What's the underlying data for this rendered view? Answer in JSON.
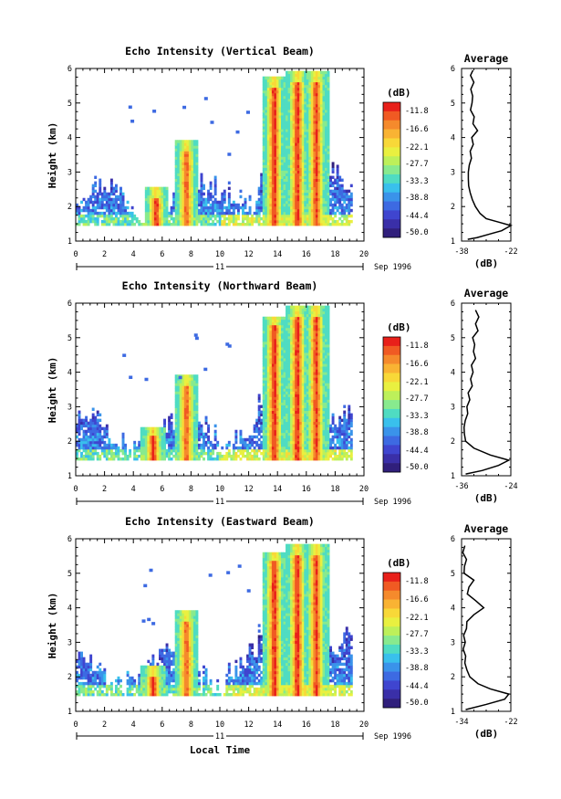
{
  "colorbar": {
    "unit": "(dB)",
    "labels": [
      "-11.8",
      "-16.6",
      "-22.1",
      "-27.7",
      "-33.3",
      "-38.8",
      "-44.4",
      "-50.0"
    ],
    "colors": [
      "#e8201a",
      "#f05a23",
      "#f58a2c",
      "#f9b333",
      "#f8d838",
      "#e9f040",
      "#bdf05a",
      "#88ea8e",
      "#4fdcc2",
      "#39c0ec",
      "#3a93ea",
      "#3d6ae2",
      "#3f45cf",
      "#3a2fa8",
      "#301f7c"
    ]
  },
  "chart_data": [
    {
      "type": "heatmap",
      "title": "Echo Intensity (Vertical Beam)",
      "ylabel": "Height (km)",
      "xlim": [
        0,
        20
      ],
      "ylim": [
        1,
        6
      ],
      "x_ticks": [
        "0",
        "2",
        "4",
        "6",
        "8",
        "10",
        "12",
        "14",
        "16",
        "18",
        "20"
      ],
      "y_ticks": [
        "1",
        "2",
        "3",
        "4",
        "5",
        "6"
      ],
      "date_label": "11",
      "date_suffix": "Sep 1996",
      "clim_db": [
        -50.0,
        -11.8
      ],
      "bursts": [
        {
          "t": 5.5,
          "top_km": 2.5,
          "peak_db": -11.8
        },
        {
          "t": 7.6,
          "top_km": 3.9,
          "peak_db": -15
        },
        {
          "t": 13.7,
          "top_km": 5.7,
          "peak_db": -11.8
        },
        {
          "t": 15.3,
          "top_km": 5.9,
          "peak_db": -11.8
        },
        {
          "t": 16.6,
          "top_km": 5.9,
          "peak_db": -13
        }
      ],
      "average": {
        "title": "Average",
        "xlabel": "(dB)",
        "xlim": [
          -38,
          -22
        ],
        "x_ticks": [
          "-38",
          "-22"
        ],
        "height_km": [
          1.05,
          1.1,
          1.2,
          1.3,
          1.45,
          1.55,
          1.65,
          1.8,
          2.0,
          2.2,
          2.4,
          2.6,
          2.8,
          3.0,
          3.2,
          3.4,
          3.6,
          3.8,
          4.0,
          4.2,
          4.4,
          4.6,
          4.8,
          5.0,
          5.2,
          5.4,
          5.6,
          5.8,
          5.95
        ],
        "value_db": [
          -36,
          -33,
          -29,
          -25,
          -22,
          -26,
          -30,
          -32,
          -33.5,
          -34.5,
          -35.2,
          -35.7,
          -35.8,
          -35.8,
          -35.5,
          -34.8,
          -35.2,
          -34.2,
          -34.7,
          -32.8,
          -34.3,
          -33.9,
          -35.1,
          -34.6,
          -34.4,
          -35.0,
          -34.0,
          -35.1,
          -34.3
        ]
      }
    },
    {
      "type": "heatmap",
      "title": "Echo Intensity (Northward Beam)",
      "ylabel": "Height (km)",
      "xlim": [
        0,
        20
      ],
      "ylim": [
        1,
        6
      ],
      "x_ticks": [
        "0",
        "2",
        "4",
        "6",
        "8",
        "10",
        "12",
        "14",
        "16",
        "18",
        "20"
      ],
      "y_ticks": [
        "1",
        "2",
        "3",
        "4",
        "5",
        "6"
      ],
      "date_label": "11",
      "date_suffix": "Sep 1996",
      "clim_db": [
        -50.0,
        -11.8
      ],
      "bursts": [
        {
          "t": 5.3,
          "top_km": 2.4,
          "peak_db": -11.8
        },
        {
          "t": 7.6,
          "top_km": 3.9,
          "peak_db": -15
        },
        {
          "t": 13.7,
          "top_km": 5.6,
          "peak_db": -11.8
        },
        {
          "t": 15.3,
          "top_km": 5.9,
          "peak_db": -11.8
        },
        {
          "t": 16.6,
          "top_km": 5.9,
          "peak_db": -13
        }
      ],
      "average": {
        "title": "Average",
        "xlabel": "(dB)",
        "xlim": [
          -36,
          -24
        ],
        "x_ticks": [
          "-36",
          "-24"
        ],
        "height_km": [
          1.05,
          1.15,
          1.3,
          1.45,
          1.6,
          1.8,
          2.0,
          2.2,
          2.4,
          2.6,
          2.8,
          3.0,
          3.2,
          3.4,
          3.6,
          3.8,
          4.0,
          4.2,
          4.4,
          4.6,
          4.8,
          5.0,
          5.2,
          5.4,
          5.6,
          5.8
        ],
        "value_db": [
          -35,
          -31,
          -27,
          -24.5,
          -29,
          -33,
          -35,
          -35.3,
          -35.4,
          -35.1,
          -34.5,
          -34.7,
          -34,
          -34.4,
          -33.4,
          -33.8,
          -33.2,
          -33.6,
          -32.6,
          -33.1,
          -32.8,
          -33.3,
          -32.0,
          -32.6,
          -31.8,
          -32.6
        ]
      }
    },
    {
      "type": "heatmap",
      "title": "Echo Intensity (Eastward Beam)",
      "ylabel": "Height (km)",
      "xlabel": "Local Time",
      "xlim": [
        0,
        20
      ],
      "ylim": [
        1,
        6
      ],
      "x_ticks": [
        "0",
        "2",
        "4",
        "6",
        "8",
        "10",
        "12",
        "14",
        "16",
        "18",
        "20"
      ],
      "y_ticks": [
        "1",
        "2",
        "3",
        "4",
        "5",
        "6"
      ],
      "date_label": "11",
      "date_suffix": "Sep 1996",
      "clim_db": [
        -50.0,
        -11.8
      ],
      "bursts": [
        {
          "t": 5.3,
          "top_km": 2.3,
          "peak_db": -11.8
        },
        {
          "t": 7.6,
          "top_km": 3.9,
          "peak_db": -15
        },
        {
          "t": 13.7,
          "top_km": 5.6,
          "peak_db": -11.8
        },
        {
          "t": 15.3,
          "top_km": 5.8,
          "peak_db": -11.8
        },
        {
          "t": 16.6,
          "top_km": 5.8,
          "peak_db": -13
        }
      ],
      "average": {
        "title": "Average",
        "xlabel": "(dB)",
        "xlim": [
          -34,
          -22
        ],
        "x_ticks": [
          "-34",
          "-22"
        ],
        "height_km": [
          1.05,
          1.2,
          1.35,
          1.5,
          1.65,
          1.8,
          2.0,
          2.2,
          2.4,
          2.6,
          2.8,
          3.0,
          3.2,
          3.4,
          3.6,
          3.8,
          4.0,
          4.2,
          4.4,
          4.6,
          4.8,
          5.0,
          5.2,
          5.4,
          5.6,
          5.8
        ],
        "value_db": [
          -33,
          -28,
          -23.5,
          -22.5,
          -27,
          -30,
          -32,
          -32.7,
          -33.2,
          -33,
          -33.6,
          -33.1,
          -33.5,
          -32.8,
          -32.7,
          -31,
          -28.6,
          -30.5,
          -32.6,
          -32.2,
          -31,
          -33.4,
          -33.3,
          -32.8,
          -33.7,
          -33.2
        ]
      }
    }
  ]
}
